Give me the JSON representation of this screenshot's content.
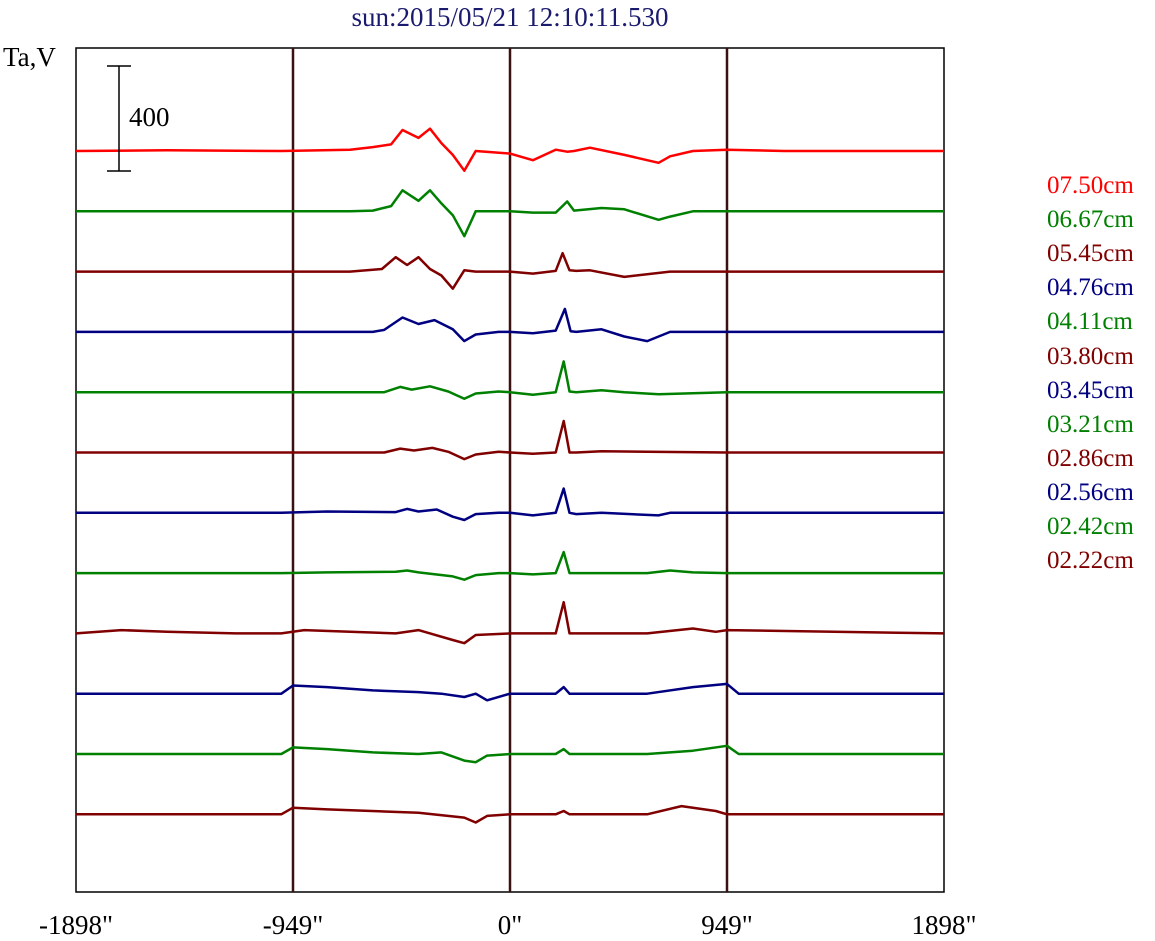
{
  "chart_data": {
    "type": "line",
    "title": "sun:2015/05/21 12:10:11.530",
    "ylabel": "Ta,V",
    "xlabel": "",
    "scale_bar_label": "400",
    "scale_bar_value": 400,
    "x_tick_labels": [
      "-1898\"",
      "-949\"",
      "0\"",
      "949\"",
      "1898\""
    ],
    "x_tick_values": [
      -1898,
      -949,
      0,
      949,
      1898
    ],
    "xlim": [
      -1898,
      1898
    ],
    "vertical_lines": [
      -949,
      0,
      949
    ],
    "grid": false,
    "legend_position": "right",
    "trace_spacing": 235,
    "series": [
      {
        "name": "07.50cm",
        "color": "#ff0000",
        "x": [
          -1898,
          -1500,
          -1000,
          -700,
          -600,
          -520,
          -470,
          -400,
          -350,
          -300,
          -250,
          -200,
          -150,
          0,
          100,
          200,
          250,
          280,
          350,
          500,
          650,
          700,
          800,
          949,
          1200,
          1898
        ],
        "values": [
          0,
          5,
          0,
          10,
          30,
          50,
          160,
          100,
          170,
          60,
          -30,
          -150,
          0,
          -20,
          -70,
          10,
          -5,
          0,
          25,
          -30,
          -90,
          -40,
          0,
          10,
          0,
          0
        ]
      },
      {
        "name": "06.67cm",
        "color": "#008000",
        "x": [
          -1898,
          -1000,
          -700,
          -600,
          -520,
          -470,
          -400,
          -350,
          -300,
          -250,
          -200,
          -150,
          0,
          100,
          200,
          250,
          280,
          400,
          500,
          650,
          700,
          800,
          949,
          1898
        ],
        "values": [
          0,
          0,
          0,
          5,
          40,
          160,
          80,
          160,
          60,
          -30,
          -190,
          0,
          0,
          -10,
          -10,
          75,
          5,
          25,
          15,
          -65,
          -40,
          0,
          0,
          0
        ]
      },
      {
        "name": "05.45cm",
        "color": "#800000",
        "x": [
          -1898,
          -1000,
          -700,
          -560,
          -500,
          -450,
          -400,
          -350,
          -300,
          -250,
          -200,
          -150,
          0,
          100,
          200,
          230,
          260,
          290,
          350,
          500,
          700,
          949,
          1200,
          1898
        ],
        "values": [
          0,
          0,
          0,
          20,
          110,
          50,
          110,
          20,
          -30,
          -130,
          10,
          0,
          0,
          -15,
          5,
          140,
          10,
          5,
          10,
          -40,
          0,
          0,
          0,
          0
        ]
      },
      {
        "name": "04.76cm",
        "color": "#000080",
        "x": [
          -1898,
          -1000,
          -600,
          -550,
          -470,
          -400,
          -330,
          -250,
          -200,
          -150,
          -50,
          0,
          100,
          200,
          240,
          265,
          290,
          400,
          500,
          600,
          700,
          949,
          1898
        ],
        "values": [
          0,
          0,
          0,
          15,
          110,
          60,
          90,
          20,
          -70,
          -20,
          0,
          0,
          -10,
          10,
          175,
          5,
          0,
          20,
          -35,
          -70,
          0,
          0,
          0
        ]
      },
      {
        "name": "04.11cm",
        "color": "#008000",
        "x": [
          -1898,
          -1000,
          -550,
          -480,
          -430,
          -350,
          -270,
          -200,
          -150,
          -50,
          0,
          100,
          200,
          235,
          260,
          290,
          400,
          500,
          650,
          949,
          1898
        ],
        "values": [
          0,
          0,
          0,
          40,
          20,
          45,
          5,
          -50,
          -10,
          5,
          0,
          -20,
          0,
          235,
          5,
          0,
          15,
          0,
          -15,
          0,
          0
        ]
      },
      {
        "name": "03.80cm",
        "color": "#800000",
        "x": [
          -1898,
          -1000,
          -550,
          -480,
          -420,
          -340,
          -270,
          -200,
          -150,
          -50,
          0,
          100,
          200,
          235,
          260,
          290,
          400,
          600,
          949,
          1898
        ],
        "values": [
          0,
          0,
          0,
          30,
          15,
          35,
          5,
          -50,
          -15,
          5,
          0,
          -10,
          0,
          240,
          0,
          0,
          10,
          5,
          0,
          0
        ]
      },
      {
        "name": "03.45cm",
        "color": "#000080",
        "x": [
          -1898,
          -1000,
          -800,
          -500,
          -450,
          -400,
          -320,
          -250,
          -200,
          -150,
          -50,
          0,
          100,
          200,
          235,
          260,
          290,
          400,
          649,
          700,
          949,
          1898
        ],
        "values": [
          0,
          0,
          10,
          5,
          30,
          10,
          25,
          -30,
          -55,
          -10,
          0,
          0,
          -20,
          0,
          185,
          0,
          -10,
          0,
          -20,
          0,
          0,
          0
        ]
      },
      {
        "name": "03.21cm",
        "color": "#008000",
        "x": [
          -1898,
          -1000,
          -800,
          -500,
          -450,
          -400,
          -250,
          -200,
          -150,
          -50,
          0,
          100,
          200,
          235,
          260,
          290,
          600,
          700,
          800,
          949,
          1898
        ],
        "values": [
          0,
          0,
          5,
          10,
          20,
          5,
          -25,
          -50,
          -15,
          0,
          0,
          -10,
          0,
          160,
          0,
          0,
          0,
          20,
          5,
          0,
          0
        ]
      },
      {
        "name": "02.86cm",
        "color": "#800000",
        "x": [
          -1898,
          -1700,
          -1500,
          -1200,
          -1000,
          -900,
          -500,
          -400,
          -250,
          -200,
          -150,
          0,
          200,
          235,
          260,
          600,
          800,
          900,
          949,
          1898
        ],
        "values": [
          0,
          10,
          5,
          0,
          0,
          10,
          0,
          10,
          -20,
          -30,
          -5,
          0,
          0,
          95,
          0,
          0,
          15,
          5,
          10,
          0
        ],
        "amp": 2.5
      },
      {
        "name": "02.56cm",
        "color": "#000080",
        "x": [
          -1898,
          -1000,
          -949,
          -800,
          -600,
          -400,
          -300,
          -200,
          -150,
          -100,
          0,
          200,
          235,
          260,
          600,
          800,
          949,
          1000,
          1898
        ],
        "values": [
          0,
          0,
          25,
          20,
          10,
          5,
          0,
          -10,
          0,
          -20,
          0,
          0,
          20,
          0,
          0,
          20,
          30,
          0,
          0
        ],
        "amp": 2.5
      },
      {
        "name": "02.42cm",
        "color": "#008000",
        "x": [
          -1898,
          -1000,
          -949,
          -800,
          -600,
          -400,
          -300,
          -200,
          -150,
          -100,
          0,
          200,
          235,
          260,
          600,
          800,
          949,
          1000,
          1898
        ],
        "values": [
          0,
          0,
          20,
          15,
          5,
          0,
          5,
          -20,
          -25,
          -5,
          0,
          0,
          15,
          0,
          0,
          10,
          25,
          0,
          0
        ],
        "amp": 2.5
      },
      {
        "name": "02.22cm",
        "color": "#800000",
        "x": [
          -1898,
          -1000,
          -949,
          -800,
          -400,
          -200,
          -150,
          -100,
          0,
          200,
          235,
          260,
          600,
          750,
          900,
          949,
          1100,
          1898
        ],
        "values": [
          0,
          0,
          20,
          15,
          5,
          -10,
          -25,
          -5,
          0,
          0,
          10,
          0,
          0,
          25,
          10,
          0,
          0,
          0
        ],
        "amp": 2.5
      }
    ]
  }
}
